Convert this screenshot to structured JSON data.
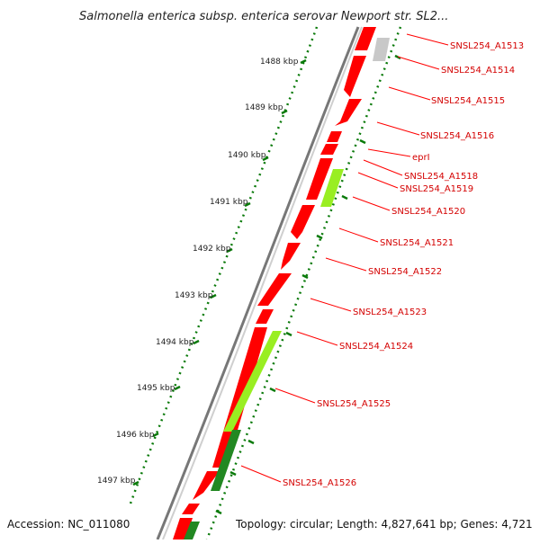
{
  "title": "Salmonella enterica subsp. enterica serovar Newport str. SL2...",
  "footer": {
    "accession": "Accession: NC_011080",
    "topology": "Topology: circular; Length: 4,827,641 bp; Genes: 4,721"
  },
  "kbp_ticks": [
    "1488 kbp",
    "1489 kbp",
    "1490 kbp",
    "1491 kbp",
    "1492 kbp",
    "1493 kbp",
    "1494 kbp",
    "1495 kbp",
    "1496 kbp",
    "1497 kbp"
  ],
  "gene_labels": [
    "SNSL254_A1513",
    "SNSL254_A1514",
    "SNSL254_A1515",
    "SNSL254_A1516",
    "eprI",
    "SNSL254_A1518",
    "SNSL254_A1519",
    "SNSL254_A1520",
    "SNSL254_A1521",
    "SNSL254_A1522",
    "SNSL254_A1523",
    "SNSL254_A1524",
    "SNSL254_A1525",
    "SNSL254_A1526"
  ],
  "colors": {
    "cds": "#ff0000",
    "gene_label": "#d40000",
    "gc_pos": "#99ee22",
    "gc_neg": "#228822",
    "backbone": "#888888",
    "ticks": "#0a7a0a",
    "grey_feature": "#c8c8c8"
  }
}
